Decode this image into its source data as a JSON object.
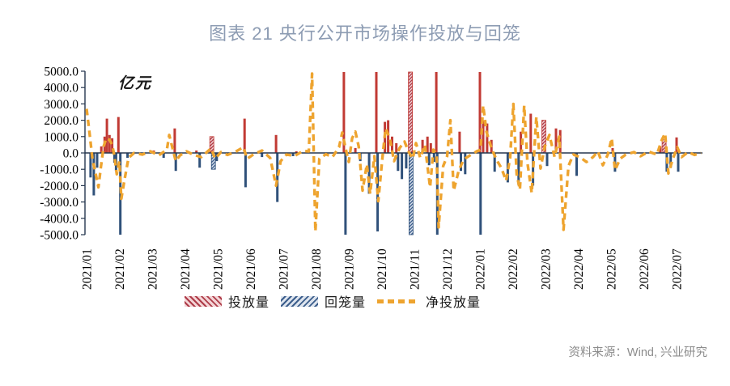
{
  "title": "图表 21 央行公开市场操作投放与回笼",
  "source": "资料来源：Wind, 兴业研究",
  "chart": {
    "unit_label": "亿元",
    "legend": {
      "items": [
        {
          "label": "投放量",
          "swatch": "red-hatch"
        },
        {
          "label": "回笼量",
          "swatch": "blue-hatch"
        },
        {
          "label": "净投放量",
          "swatch": "orange-dash"
        }
      ]
    }
  },
  "colors": {
    "injection": "#c13a34",
    "withdrawal": "#30517a",
    "net_line": "#eea42f",
    "axis": "#26374f",
    "title_text": "#8d9cb3",
    "source_text": "#8c8c8c"
  },
  "chart_data": {
    "type": "bar",
    "title": "图表 21 央行公开市场操作投放与回笼",
    "ylabel": "亿元",
    "ylim": [
      -5000,
      5000
    ],
    "ytick_step": 1000,
    "ytick_labels": [
      "5000.0",
      "4000.0",
      "3000.0",
      "2000.0",
      "1000.0",
      "0.0",
      "-1000.0",
      "-2000.0",
      "-3000.0",
      "-4000.0",
      "-5000.0"
    ],
    "x_categories": [
      "2021/01",
      "2021/02",
      "2021/03",
      "2021/04",
      "2021/05",
      "2021/06",
      "2021/07",
      "2021/08",
      "2021/09",
      "2021/10",
      "2021/11",
      "2021/12",
      "2022/01",
      "2022/02",
      "2022/03",
      "2022/04",
      "2022/05",
      "2022/06",
      "2022/07"
    ],
    "grid": false,
    "legend_position": "bottom",
    "point_format": "[x_in_months_from_2021_01, value_yi_yuan, wide_hatched_bar_flag]",
    "series": [
      {
        "name": "投放量",
        "type": "bar",
        "color": "#c13a34",
        "points": [
          [
            0.45,
            400
          ],
          [
            0.55,
            1000
          ],
          [
            0.62,
            2100
          ],
          [
            0.7,
            1100
          ],
          [
            0.78,
            900
          ],
          [
            0.97,
            2200
          ],
          [
            2.05,
            150
          ],
          [
            2.69,
            1500
          ],
          [
            3.35,
            150
          ],
          [
            3.82,
            1000,
            1
          ],
          [
            4.82,
            2100
          ],
          [
            5.78,
            1100
          ],
          [
            6.4,
            100
          ],
          [
            7.85,
            4950
          ],
          [
            8.2,
            300
          ],
          [
            8.84,
            4950
          ],
          [
            9.1,
            1900
          ],
          [
            9.2,
            2000
          ],
          [
            9.32,
            1000
          ],
          [
            9.45,
            600
          ],
          [
            9.88,
            4950,
            1
          ],
          [
            10.25,
            800
          ],
          [
            10.4,
            1000
          ],
          [
            10.5,
            600
          ],
          [
            10.67,
            4950
          ],
          [
            11.38,
            1300
          ],
          [
            12.0,
            4950
          ],
          [
            12.1,
            2000
          ],
          [
            12.22,
            1800
          ],
          [
            12.35,
            800
          ],
          [
            13.25,
            1300
          ],
          [
            13.55,
            2400
          ],
          [
            13.95,
            2000,
            1
          ],
          [
            14.32,
            1500
          ],
          [
            14.45,
            1400
          ],
          [
            16.05,
            300
          ],
          [
            17.5,
            400
          ],
          [
            17.62,
            800,
            1
          ],
          [
            18.0,
            950
          ]
        ]
      },
      {
        "name": "回笼量",
        "type": "bar",
        "color": "#30517a",
        "points": [
          [
            0.12,
            -1500
          ],
          [
            0.22,
            -2600
          ],
          [
            0.32,
            -900
          ],
          [
            0.85,
            -600
          ],
          [
            0.9,
            -1100
          ],
          [
            1.03,
            -5000
          ],
          [
            1.25,
            -300
          ],
          [
            2.35,
            -300
          ],
          [
            2.72,
            -1100
          ],
          [
            3.45,
            -900
          ],
          [
            3.87,
            -1000,
            1
          ],
          [
            3.97,
            -500
          ],
          [
            4.85,
            -2100
          ],
          [
            5.35,
            -250
          ],
          [
            5.82,
            -3000
          ],
          [
            6.3,
            -200
          ],
          [
            7.9,
            -5000
          ],
          [
            8.35,
            -500
          ],
          [
            8.62,
            -2500
          ],
          [
            8.88,
            -4800
          ],
          [
            9.5,
            -1100
          ],
          [
            9.62,
            -1600
          ],
          [
            9.75,
            -950
          ],
          [
            9.9,
            -5000,
            1
          ],
          [
            10.45,
            -750
          ],
          [
            10.6,
            -550
          ],
          [
            10.7,
            -5000
          ],
          [
            11.42,
            -1100
          ],
          [
            11.55,
            -1300
          ],
          [
            12.02,
            -5000
          ],
          [
            12.45,
            -1150
          ],
          [
            12.85,
            -1800
          ],
          [
            13.18,
            -1950
          ],
          [
            13.62,
            -2000
          ],
          [
            14.05,
            -800
          ],
          [
            14.95,
            -1400
          ],
          [
            16.12,
            -1150
          ],
          [
            17.7,
            -1150
          ],
          [
            17.82,
            -900
          ],
          [
            18.05,
            -1150
          ]
        ]
      },
      {
        "name": "净投放量",
        "type": "line",
        "color": "#eea42f",
        "points": [
          [
            0,
            2700
          ],
          [
            0.08,
            1400
          ],
          [
            0.18,
            -400
          ],
          [
            0.28,
            -1300
          ],
          [
            0.36,
            -2100
          ],
          [
            0.44,
            -800
          ],
          [
            0.52,
            400
          ],
          [
            0.6,
            900
          ],
          [
            0.7,
            800
          ],
          [
            0.78,
            500
          ],
          [
            0.85,
            -200
          ],
          [
            0.92,
            -1300
          ],
          [
            1,
            -500
          ],
          [
            1.06,
            -2800
          ],
          [
            1.16,
            -1600
          ],
          [
            1.28,
            -300
          ],
          [
            1.45,
            0
          ],
          [
            1.7,
            -100
          ],
          [
            1.95,
            100
          ],
          [
            2.2,
            -150
          ],
          [
            2.45,
            200
          ],
          [
            2.52,
            1100
          ],
          [
            2.62,
            300
          ],
          [
            2.72,
            -500
          ],
          [
            2.85,
            -150
          ],
          [
            3.05,
            100
          ],
          [
            3.25,
            -100
          ],
          [
            3.5,
            -250
          ],
          [
            3.8,
            280
          ],
          [
            3.92,
            -350
          ],
          [
            4.1,
            50
          ],
          [
            4.3,
            -120
          ],
          [
            4.55,
            80
          ],
          [
            4.78,
            350
          ],
          [
            4.9,
            -350
          ],
          [
            5.1,
            -80
          ],
          [
            5.35,
            150
          ],
          [
            5.6,
            -300
          ],
          [
            5.78,
            -2000
          ],
          [
            5.92,
            -500
          ],
          [
            6.1,
            -100
          ],
          [
            6.35,
            -180
          ],
          [
            6.6,
            120
          ],
          [
            6.78,
            100
          ],
          [
            6.88,
            4850
          ],
          [
            6.98,
            -4800
          ],
          [
            7.1,
            -350
          ],
          [
            7.3,
            -80
          ],
          [
            7.5,
            -250
          ],
          [
            7.7,
            350
          ],
          [
            7.8,
            1250
          ],
          [
            7.9,
            300
          ],
          [
            8,
            -550
          ],
          [
            8.1,
            900
          ],
          [
            8.2,
            1300
          ],
          [
            8.3,
            400
          ],
          [
            8.42,
            -2300
          ],
          [
            8.55,
            -700
          ],
          [
            8.65,
            -2500
          ],
          [
            8.78,
            -200
          ],
          [
            8.9,
            -2950
          ],
          [
            9.02,
            -400
          ],
          [
            9.12,
            1500
          ],
          [
            9.25,
            900
          ],
          [
            9.38,
            -500
          ],
          [
            9.55,
            300
          ],
          [
            9.7,
            700
          ],
          [
            9.82,
            100
          ],
          [
            9.95,
            -350
          ],
          [
            10.05,
            600
          ],
          [
            10.18,
            -300
          ],
          [
            10.32,
            500
          ],
          [
            10.48,
            -2100
          ],
          [
            10.58,
            200
          ],
          [
            10.68,
            -100
          ],
          [
            10.74,
            -4550
          ],
          [
            10.88,
            -800
          ],
          [
            11,
            -200
          ],
          [
            11.1,
            2000
          ],
          [
            11.2,
            -2300
          ],
          [
            11.35,
            -1100
          ],
          [
            11.5,
            -400
          ],
          [
            11.7,
            -150
          ],
          [
            11.9,
            100
          ],
          [
            12.02,
            200
          ],
          [
            12.1,
            2900
          ],
          [
            12.2,
            1300
          ],
          [
            12.35,
            300
          ],
          [
            12.5,
            -400
          ],
          [
            12.65,
            -900
          ],
          [
            12.8,
            -1700
          ],
          [
            12.92,
            -300
          ],
          [
            13.02,
            3000
          ],
          [
            13.12,
            -1300
          ],
          [
            13.22,
            -2250
          ],
          [
            13.35,
            2900
          ],
          [
            13.45,
            -600
          ],
          [
            13.58,
            -2450
          ],
          [
            13.72,
            2200
          ],
          [
            13.85,
            -950
          ],
          [
            13.98,
            400
          ],
          [
            14.12,
            1100
          ],
          [
            14.28,
            -250
          ],
          [
            14.42,
            1000
          ],
          [
            14.55,
            -4700
          ],
          [
            14.7,
            -800
          ],
          [
            14.85,
            -100
          ],
          [
            15.05,
            -250
          ],
          [
            15.25,
            -550
          ],
          [
            15.45,
            -250
          ],
          [
            15.6,
            100
          ],
          [
            15.75,
            -750
          ],
          [
            15.9,
            -100
          ],
          [
            16.02,
            900
          ],
          [
            16.12,
            -1050
          ],
          [
            16.28,
            -350
          ],
          [
            16.45,
            -100
          ],
          [
            16.7,
            50
          ],
          [
            16.9,
            -200
          ],
          [
            17.15,
            80
          ],
          [
            17.4,
            -100
          ],
          [
            17.55,
            800
          ],
          [
            17.65,
            1200
          ],
          [
            17.75,
            -1250
          ],
          [
            17.88,
            -400
          ],
          [
            18.02,
            350
          ],
          [
            18.15,
            -250
          ],
          [
            18.35,
            50
          ],
          [
            18.55,
            -120
          ],
          [
            18.75,
            0
          ]
        ]
      }
    ]
  }
}
